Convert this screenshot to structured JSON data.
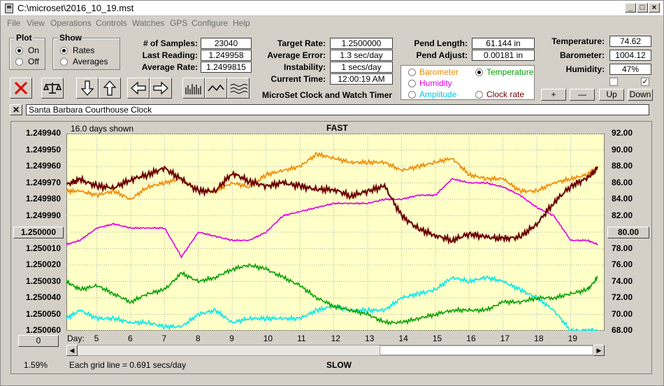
{
  "window": {
    "title": "C:\\microset\\2016_10_19.mst"
  },
  "menu": [
    "File",
    "View",
    "Operations",
    "Controls",
    "Watches",
    "GPS",
    "Configure",
    "Help"
  ],
  "plot_group": {
    "label": "Plot",
    "on": "On",
    "off": "Off",
    "selected": "On"
  },
  "show_group": {
    "label": "Show",
    "rates": "Rates",
    "averages": "Averages",
    "selected": "Rates"
  },
  "stats": {
    "samples_label": "# of Samples:",
    "samples": "23040",
    "last_label": "Last Reading:",
    "last": "1.249958",
    "avg_label": "Average Rate:",
    "avg": "1.2499815",
    "target_label": "Target Rate:",
    "target": "1.2500000",
    "err_label": "Average Error:",
    "err": "1.3 sec/day",
    "inst_label": "Instability:",
    "inst": "1 secs/day",
    "time_label": "Current Time:",
    "time": "12:00:19 AM",
    "pend_label": "Pend Length:",
    "pend": "61.144 in",
    "adj_label": "Pend Adjust:",
    "adj": "0.00181 in",
    "temp_label": "Temperature:",
    "temp": "74.62",
    "baro_label": "Barometer:",
    "baro": "1004.12",
    "hum_label": "Humidity:",
    "hum": "47%"
  },
  "app_name": "MicroSet Clock and Watch Timer",
  "sensors": {
    "barometer": "Barometer",
    "temperature": "Temperature",
    "humidity": "Humidity",
    "amplitude": "Amplitude",
    "clock_rate": "Clock rate",
    "selected": "Temperature"
  },
  "small_buttons": {
    "plus": "+",
    "minus": "—",
    "up": "Up",
    "down": "Down"
  },
  "clock_name": "Santa Barbara Courthouse Clock",
  "plot": {
    "days_shown": "16.0 days shown",
    "fast": "FAST",
    "slow": "SLOW",
    "left_ticks": [
      "1.249940",
      "1.249950",
      "1.249960",
      "1.249970",
      "1.249980",
      "1.249990",
      "1.250000",
      "1.250010",
      "1.250020",
      "1.250030",
      "1.250040",
      "1.250050",
      "1.250060"
    ],
    "right_ticks": [
      "92.00",
      "90.00",
      "88.00",
      "86.00",
      "84.00",
      "82.00",
      "80.00",
      "78.00",
      "76.00",
      "74.00",
      "72.00",
      "70.00",
      "68.00"
    ],
    "day_label": "Day:",
    "days": [
      "5",
      "6",
      "7",
      "8",
      "9",
      "10",
      "11",
      "12",
      "13",
      "14",
      "15",
      "16",
      "17",
      "18",
      "19"
    ],
    "center_left": "1.250000",
    "center_right": "80.00",
    "offset": "0",
    "grid_note": "Each grid line = 0.691 secs/day",
    "percent": "1.59%"
  },
  "colors": {
    "rate": "#6b0000",
    "barometer": "#ee8800",
    "humidity": "#e000e0",
    "temperature": "#00a000",
    "amplitude": "#00e8e8",
    "plotbg": "#ffffc8"
  },
  "chart_data": {
    "type": "line",
    "xlabel": "Day:",
    "ylabel": "",
    "ylabel_right": "",
    "x_range": [
      4.1,
      20.0
    ],
    "ylim_left": [
      1.25006,
      1.24994
    ],
    "ylim_right": [
      68,
      92
    ],
    "x": [
      4.1,
      4.5,
      5.0,
      5.5,
      6.0,
      6.5,
      7.0,
      7.5,
      8.0,
      8.5,
      9.0,
      9.5,
      10.0,
      10.5,
      11.0,
      11.5,
      12.0,
      12.5,
      13.0,
      13.5,
      14.0,
      14.5,
      15.0,
      15.5,
      16.0,
      16.5,
      17.0,
      17.5,
      18.0,
      18.5,
      19.0,
      19.5,
      19.8
    ],
    "series": [
      {
        "name": "Clock rate",
        "axis": "left",
        "values": [
          1.249971,
          1.249968,
          1.249972,
          1.249973,
          1.249968,
          1.249965,
          1.249961,
          1.249968,
          1.249975,
          1.249975,
          1.249964,
          1.249969,
          1.249972,
          1.24997,
          1.249972,
          1.249974,
          1.249974,
          1.249978,
          1.249975,
          1.249972,
          1.24999,
          1.249998,
          1.250002,
          1.250005,
          1.250001,
          1.250003,
          1.250004,
          1.250003,
          1.249995,
          1.249982,
          1.249972,
          1.249967,
          1.249961
        ]
      },
      {
        "name": "Barometer",
        "axis": "right",
        "values": [
          85,
          85,
          84.5,
          85,
          84,
          85.5,
          86,
          86.5,
          85,
          85,
          86,
          85.5,
          87,
          87.5,
          88,
          89.5,
          89,
          88.5,
          88.5,
          88.5,
          87.5,
          88,
          88.5,
          89,
          87,
          86.5,
          86.5,
          85,
          85,
          86,
          86.5,
          87,
          88
        ]
      },
      {
        "name": "Humidity",
        "axis": "right",
        "values": [
          78.5,
          79,
          80.5,
          81,
          80.5,
          80.5,
          80.5,
          77,
          80,
          79.5,
          79,
          79,
          80,
          82,
          82.5,
          83,
          83.5,
          83.5,
          83.5,
          84,
          84,
          84.5,
          84.5,
          86.5,
          86,
          86,
          85.5,
          84.5,
          83,
          82,
          79,
          79,
          78.5
        ]
      },
      {
        "name": "Temperature",
        "axis": "right",
        "values": [
          74,
          73,
          73.5,
          72.5,
          71.5,
          72.5,
          73,
          75,
          74,
          74.5,
          75.5,
          76,
          75.5,
          74.5,
          73.5,
          72,
          71,
          70.5,
          70,
          69,
          69,
          69.5,
          70,
          70.5,
          70.5,
          70.5,
          71.5,
          71.5,
          72,
          72,
          72.5,
          73,
          74.5
        ]
      },
      {
        "name": "Amplitude",
        "axis": "right",
        "values": [
          69.5,
          70.5,
          69.5,
          69.5,
          69,
          69,
          68.5,
          68.5,
          70,
          70.5,
          69,
          69.5,
          69.5,
          69.5,
          69.5,
          70.5,
          71,
          70.5,
          70.5,
          70.5,
          72,
          72.5,
          73,
          74.5,
          74,
          74.5,
          74,
          73,
          72,
          70.5,
          68,
          68,
          68
        ]
      }
    ]
  }
}
